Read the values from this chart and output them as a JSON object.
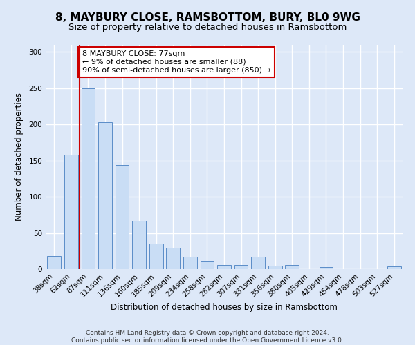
{
  "title": "8, MAYBURY CLOSE, RAMSBOTTOM, BURY, BL0 9WG",
  "subtitle": "Size of property relative to detached houses in Ramsbottom",
  "xlabel": "Distribution of detached houses by size in Ramsbottom",
  "ylabel": "Number of detached properties",
  "categories": [
    "38sqm",
    "62sqm",
    "87sqm",
    "111sqm",
    "136sqm",
    "160sqm",
    "185sqm",
    "209sqm",
    "234sqm",
    "258sqm",
    "282sqm",
    "307sqm",
    "331sqm",
    "356sqm",
    "380sqm",
    "405sqm",
    "429sqm",
    "454sqm",
    "478sqm",
    "503sqm",
    "527sqm"
  ],
  "values": [
    18,
    158,
    250,
    203,
    144,
    67,
    35,
    30,
    17,
    11,
    6,
    6,
    17,
    5,
    6,
    0,
    3,
    0,
    0,
    0,
    4
  ],
  "bar_color": "#c9ddf5",
  "bar_edge_color": "#5b8dc8",
  "red_line_x": 1.5,
  "annotation_text": "8 MAYBURY CLOSE: 77sqm\n← 9% of detached houses are smaller (88)\n90% of semi-detached houses are larger (850) →",
  "annotation_box_color": "#ffffff",
  "annotation_box_edge_color": "#cc0000",
  "red_line_color": "#cc0000",
  "ylim": [
    0,
    310
  ],
  "yticks": [
    0,
    50,
    100,
    150,
    200,
    250,
    300
  ],
  "footnote": "Contains HM Land Registry data © Crown copyright and database right 2024.\nContains public sector information licensed under the Open Government Licence v3.0.",
  "background_color": "#dde8f8",
  "grid_color": "#ffffff",
  "title_fontsize": 11,
  "subtitle_fontsize": 9.5,
  "axis_label_fontsize": 8.5,
  "tick_fontsize": 7.5,
  "annotation_fontsize": 8,
  "footnote_fontsize": 6.5
}
